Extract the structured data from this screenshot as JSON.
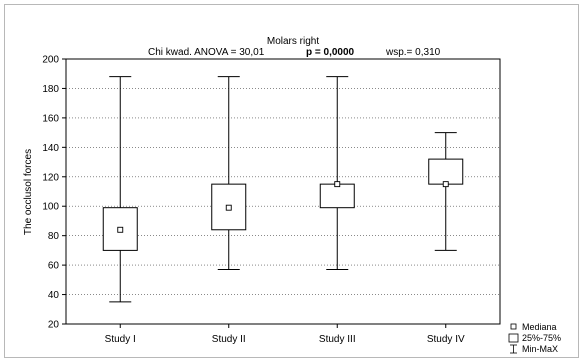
{
  "chart_data": {
    "type": "box",
    "title": "Molars right",
    "subtitle": {
      "anova": "Chi kwad. ANOVA = 30,01",
      "p_value": "p = 0,0000",
      "coef": "wsp.= 0,310"
    },
    "ylabel": "The occlusol forces",
    "xlabel": "",
    "ylim": [
      20,
      200
    ],
    "yticks": [
      "20",
      "40",
      "60",
      "80",
      "100",
      "120",
      "140",
      "160",
      "180",
      "200"
    ],
    "grid": true,
    "categories": [
      "Study I",
      "Study II",
      "Study III",
      "Study IV"
    ],
    "boxes": [
      {
        "min": 35,
        "q1": 70,
        "median": 84,
        "q3": 99,
        "max": 188
      },
      {
        "min": 57,
        "q1": 84,
        "median": 99,
        "q3": 115,
        "max": 188
      },
      {
        "min": 57,
        "q1": 99,
        "median": 115,
        "q3": 115,
        "max": 188
      },
      {
        "min": 70,
        "q1": 115,
        "median": 115,
        "q3": 132,
        "max": 150
      }
    ],
    "legend": {
      "position": "bottom-right",
      "entries": [
        "Mediana",
        "25%-75%",
        "Min-MaX"
      ]
    }
  }
}
